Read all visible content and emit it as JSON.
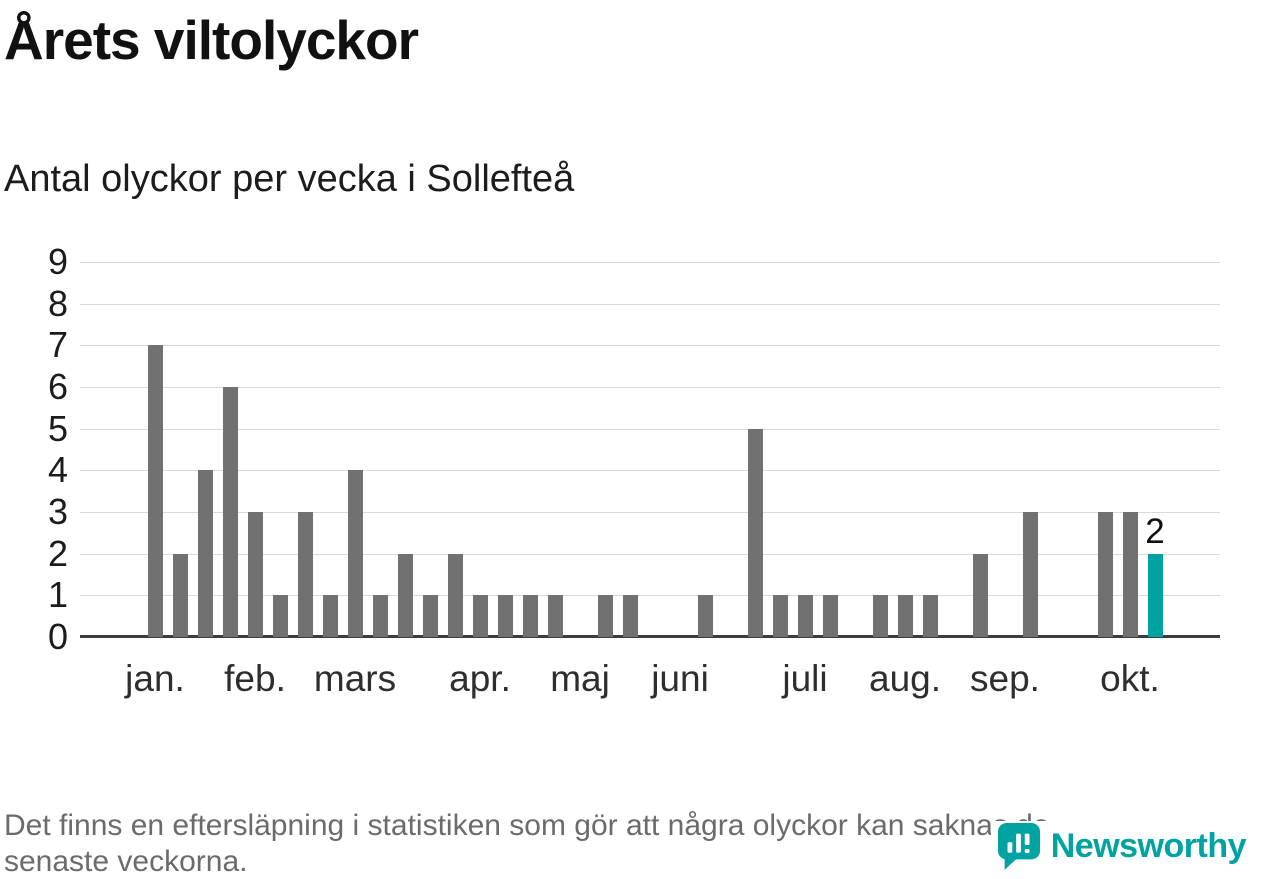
{
  "page": {
    "title": "Årets viltolyckor",
    "subtitle": "Antal olyckor per vecka i Sollefteå",
    "footnote_lines": [
      "Det finns en eftersläpning i statistiken som gör att några olyckor kan saknas de",
      "senaste veckorna."
    ]
  },
  "branding": {
    "name": "Newsworthy",
    "accent_color": "#00a2a2"
  },
  "chart_data": {
    "type": "bar",
    "title": "Årets viltolyckor",
    "subtitle": "Antal olyckor per vecka i Sollefteå",
    "x_unit": "vecka",
    "x_weeks": [
      1,
      2,
      3,
      4,
      5,
      6,
      7,
      8,
      9,
      10,
      11,
      12,
      13,
      14,
      15,
      16,
      17,
      18,
      19,
      20,
      21,
      22,
      23,
      24,
      25,
      26,
      27,
      28,
      29,
      30,
      31,
      32,
      33,
      34,
      35,
      36,
      37,
      38,
      39,
      40,
      41
    ],
    "values": [
      7,
      2,
      4,
      6,
      3,
      1,
      3,
      1,
      4,
      1,
      2,
      1,
      2,
      1,
      1,
      1,
      1,
      0,
      1,
      1,
      0,
      0,
      1,
      0,
      5,
      1,
      1,
      1,
      0,
      1,
      1,
      1,
      0,
      2,
      0,
      3,
      0,
      0,
      3,
      3,
      2
    ],
    "xticks": [
      {
        "label": "jan.",
        "week": 1
      },
      {
        "label": "feb.",
        "week": 5
      },
      {
        "label": "mars",
        "week": 9
      },
      {
        "label": "apr.",
        "week": 14
      },
      {
        "label": "maj",
        "week": 18
      },
      {
        "label": "juni",
        "week": 22
      },
      {
        "label": "juli",
        "week": 27
      },
      {
        "label": "aug.",
        "week": 31
      },
      {
        "label": "sep.",
        "week": 35
      },
      {
        "label": "okt.",
        "week": 40
      }
    ],
    "ylim": [
      0,
      9
    ],
    "yticks": [
      0,
      1,
      2,
      3,
      4,
      5,
      6,
      7,
      8,
      9
    ],
    "grid": true,
    "legend": "none",
    "highlight_index": 40,
    "highlight_value_label": "2",
    "bar_color": "#717171",
    "highlight_color": "#00a2a2",
    "gridline_color": "#d9d9d9",
    "axis_color": "#3c3c3c"
  }
}
